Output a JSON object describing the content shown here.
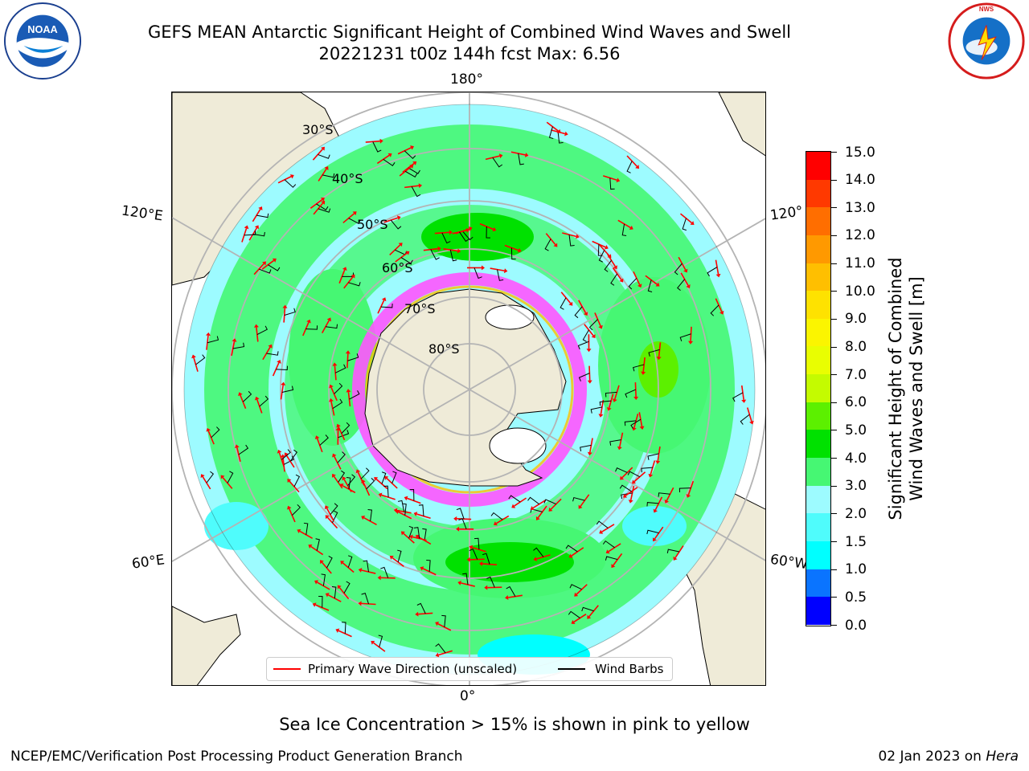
{
  "header": {
    "title_line1": "GEFS MEAN Antarctic Significant Height of Combined Wind Waves and Swell",
    "title_line2": "20221231 t00z 144h fcst   Max: 6.56"
  },
  "logos": {
    "left": "NOAA",
    "right": "NATIONAL WEATHER SERVICE"
  },
  "map": {
    "projection": "south-polar-stereographic",
    "longitude_labels": {
      "top": "180°",
      "bottom": "0°",
      "upper_left": "120°E",
      "upper_right": "120°",
      "lower_left": "60°E",
      "lower_right": "60°W"
    },
    "latitude_labels": [
      "30°S",
      "40°S",
      "50°S",
      "60°S",
      "70°S",
      "80°S"
    ],
    "legend": {
      "wave_label": "Primary Wave Direction (unscaled)",
      "wind_label": "Wind Barbs"
    },
    "colors": {
      "land": "#efebd8",
      "ocean_low": "#9dfbff",
      "ocean_mid": "#46f773",
      "ocean_high": "#00e100",
      "ice": "#ff55ff",
      "wave_arrow": "#ff0000"
    }
  },
  "colorbar": {
    "label_line1": "Significant Height of Combined",
    "label_line2": "Wind Waves and Swell [m]",
    "ticks": [
      "0.0",
      "0.5",
      "1.0",
      "1.5",
      "2.0",
      "3.0",
      "4.0",
      "5.0",
      "6.0",
      "7.0",
      "8.0",
      "9.0",
      "10.0",
      "11.0",
      "12.0",
      "13.0",
      "14.0",
      "15.0"
    ],
    "colors": [
      "#0000ff",
      "#0a74ff",
      "#00ffff",
      "#4ffcfc",
      "#9dfbff",
      "#46f773",
      "#00e100",
      "#5cf000",
      "#c4fb00",
      "#e9fe01",
      "#fbf500",
      "#fee200",
      "#ffbf00",
      "#ff9900",
      "#ff6e00",
      "#ff3900",
      "#ff0000"
    ]
  },
  "footer": {
    "note": "Sea Ice Concentration > 15% is shown in pink to yellow",
    "left": "NCEP/EMC/Verification Post Processing Product Generation Branch",
    "right_date": "02 Jan 2023 on ",
    "right_machine": "Hera"
  }
}
